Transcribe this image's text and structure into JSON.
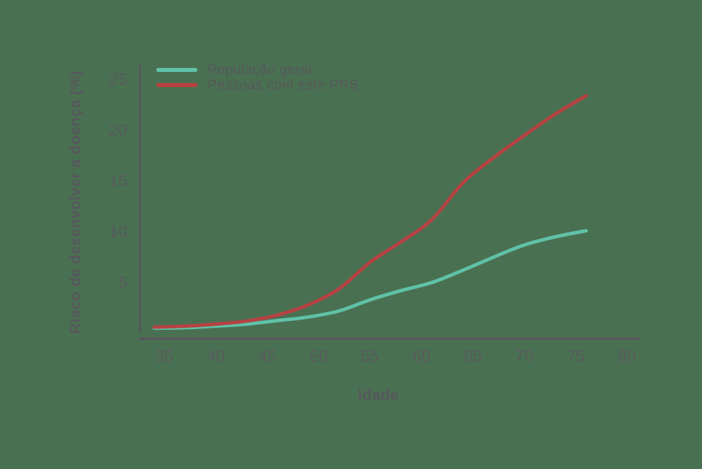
{
  "chart_data": {
    "type": "line",
    "title": "",
    "xlabel": "Idade",
    "ylabel": "Risco de desenvolver a doença (%)",
    "x_ticks": [
      35,
      40,
      45,
      50,
      55,
      60,
      65,
      70,
      75,
      80
    ],
    "y_ticks": [
      5,
      10,
      15,
      20,
      25
    ],
    "xlim": [
      32.5,
      81
    ],
    "ylim": [
      0,
      26.5
    ],
    "grid": false,
    "legend_position": "top-left-inside",
    "background_color": "#4a7052",
    "axis_color": "#56585c",
    "text_color": "#585a5e",
    "series": [
      {
        "name": "População geral",
        "color": "#5fc2a8",
        "x": [
          34,
          37,
          40,
          43,
          46,
          49,
          52,
          55,
          58,
          61,
          64,
          67,
          70,
          73,
          76
        ],
        "y": [
          0.5,
          0.55,
          0.7,
          0.9,
          1.25,
          1.6,
          2.2,
          3.3,
          4.2,
          5.0,
          6.2,
          7.5,
          8.7,
          9.5,
          10.1
        ]
      },
      {
        "name": "Pessoas com este PRS",
        "color": "#b74242",
        "x": [
          34,
          37,
          40,
          43,
          46,
          49,
          52,
          55,
          58,
          61,
          64,
          67,
          70,
          73,
          76
        ],
        "y": [
          0.6,
          0.7,
          0.9,
          1.2,
          1.8,
          2.8,
          4.4,
          7.0,
          9.0,
          11.2,
          14.8,
          17.3,
          19.5,
          21.6,
          23.4
        ]
      }
    ]
  }
}
